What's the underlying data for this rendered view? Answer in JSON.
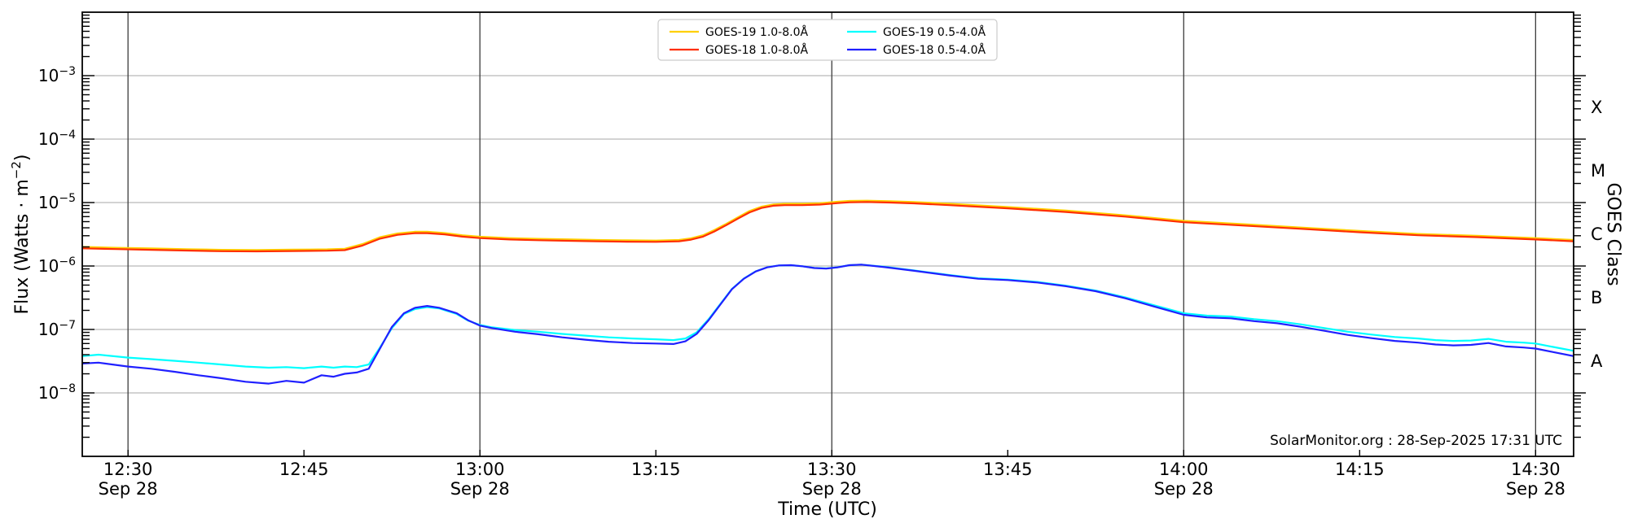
{
  "annotation": {
    "text": "SolarMonitor.org : 28-Sep-2025 17:31 UTC"
  },
  "axes": {
    "xlabel": "Time (UTC)",
    "ylabel_parts": [
      "Flux (Watts · m",
      "−2",
      ")"
    ],
    "right_axis": {
      "label": "GOES Class",
      "classes": [
        {
          "label": "X",
          "mid_exp": -3.5
        },
        {
          "label": "M",
          "mid_exp": -4.5
        },
        {
          "label": "C",
          "mid_exp": -5.5
        },
        {
          "label": "B",
          "mid_exp": -6.5
        },
        {
          "label": "A",
          "mid_exp": -7.5
        }
      ]
    }
  },
  "legend": {
    "entries": [
      {
        "label": "GOES-19 1.0-8.0Å",
        "color": "#ffd000"
      },
      {
        "label": "GOES-18 1.0-8.0Å",
        "color": "#ff2e00"
      },
      {
        "label": "GOES-19 0.5-4.0Å",
        "color": "#00ffff"
      },
      {
        "label": "GOES-18 0.5-4.0Å",
        "color": "#2020ff"
      }
    ]
  },
  "colors": {
    "h_grid": "#b9b9b9",
    "v_grid": "#3c3c3c",
    "spine": "#000000",
    "legend_border": "#cccccc"
  },
  "chart_data": {
    "type": "line",
    "title": "",
    "xlabel": "Time (UTC)",
    "ylabel": "Flux (Watts · m−2)",
    "x_unit": "decimal_hours_utc",
    "date": "Sep 28",
    "x_range": [
      12.435,
      14.554
    ],
    "y_range_exp": [
      -9,
      -2
    ],
    "y_labeled_decades_exp": [
      -3,
      -4,
      -5,
      -6,
      -7,
      -8
    ],
    "grid": {
      "horizontal": "decades",
      "vertical": "half_hours"
    },
    "legend_position": "upper center",
    "x_ticks": [
      {
        "t": 12.5,
        "label": "12:30",
        "date": "Sep 28"
      },
      {
        "t": 12.75,
        "label": "12:45"
      },
      {
        "t": 13.0,
        "label": "13:00",
        "date": "Sep 28"
      },
      {
        "t": 13.25,
        "label": "13:15"
      },
      {
        "t": 13.5,
        "label": "13:30",
        "date": "Sep 28"
      },
      {
        "t": 13.75,
        "label": "13:45"
      },
      {
        "t": 14.0,
        "label": "14:00",
        "date": "Sep 28"
      },
      {
        "t": 14.25,
        "label": "14:15"
      },
      {
        "t": 14.5,
        "label": "14:30",
        "date": "Sep 28"
      }
    ],
    "series": [
      {
        "name": "GOES-19 1.0-8.0Å",
        "color": "#ffd000",
        "points": [
          [
            12.435,
            2e-06
          ],
          [
            12.483,
            1.94e-06
          ],
          [
            12.533,
            1.89e-06
          ],
          [
            12.583,
            1.84e-06
          ],
          [
            12.633,
            1.8e-06
          ],
          [
            12.683,
            1.79e-06
          ],
          [
            12.733,
            1.81e-06
          ],
          [
            12.783,
            1.83e-06
          ],
          [
            12.808,
            1.87e-06
          ],
          [
            12.833,
            2.21e-06
          ],
          [
            12.858,
            2.84e-06
          ],
          [
            12.883,
            3.26e-06
          ],
          [
            12.908,
            3.47e-06
          ],
          [
            12.925,
            3.47e-06
          ],
          [
            12.95,
            3.31e-06
          ],
          [
            12.975,
            3.05e-06
          ],
          [
            13.0,
            2.89e-06
          ],
          [
            13.042,
            2.75e-06
          ],
          [
            13.083,
            2.68e-06
          ],
          [
            13.125,
            2.63e-06
          ],
          [
            13.167,
            2.57e-06
          ],
          [
            13.208,
            2.54e-06
          ],
          [
            13.25,
            2.52e-06
          ],
          [
            13.283,
            2.57e-06
          ],
          [
            13.3,
            2.73e-06
          ],
          [
            13.317,
            3.05e-06
          ],
          [
            13.333,
            3.68e-06
          ],
          [
            13.35,
            4.62e-06
          ],
          [
            13.367,
            5.88e-06
          ],
          [
            13.383,
            7.35e-06
          ],
          [
            13.4,
            8.61e-06
          ],
          [
            13.417,
            9.35e-06
          ],
          [
            13.433,
            9.56e-06
          ],
          [
            13.458,
            9.56e-06
          ],
          [
            13.483,
            9.77e-06
          ],
          [
            13.508,
            1.03e-05
          ],
          [
            13.525,
            1.06e-05
          ],
          [
            13.55,
            1.07e-05
          ],
          [
            13.583,
            1.05e-05
          ],
          [
            13.617,
            1.02e-05
          ],
          [
            13.667,
            9.56e-06
          ],
          [
            13.75,
            8.51e-06
          ],
          [
            13.833,
            7.46e-06
          ],
          [
            13.917,
            6.3e-06
          ],
          [
            14.0,
            5.15e-06
          ],
          [
            14.083,
            4.57e-06
          ],
          [
            14.167,
            4.04e-06
          ],
          [
            14.25,
            3.57e-06
          ],
          [
            14.333,
            3.2e-06
          ],
          [
            14.417,
            2.99e-06
          ],
          [
            14.5,
            2.75e-06
          ],
          [
            14.554,
            2.57e-06
          ]
        ]
      },
      {
        "name": "GOES-18 1.0-8.0Å",
        "color": "#ff2e00",
        "points": [
          [
            12.435,
            1.9e-06
          ],
          [
            12.483,
            1.85e-06
          ],
          [
            12.533,
            1.8e-06
          ],
          [
            12.583,
            1.75e-06
          ],
          [
            12.633,
            1.71e-06
          ],
          [
            12.683,
            1.7e-06
          ],
          [
            12.733,
            1.72e-06
          ],
          [
            12.783,
            1.74e-06
          ],
          [
            12.808,
            1.78e-06
          ],
          [
            12.833,
            2.1e-06
          ],
          [
            12.858,
            2.7e-06
          ],
          [
            12.883,
            3.1e-06
          ],
          [
            12.908,
            3.3e-06
          ],
          [
            12.925,
            3.3e-06
          ],
          [
            12.95,
            3.15e-06
          ],
          [
            12.975,
            2.9e-06
          ],
          [
            13.0,
            2.75e-06
          ],
          [
            13.042,
            2.62e-06
          ],
          [
            13.083,
            2.55e-06
          ],
          [
            13.125,
            2.5e-06
          ],
          [
            13.167,
            2.45e-06
          ],
          [
            13.208,
            2.42e-06
          ],
          [
            13.25,
            2.4e-06
          ],
          [
            13.283,
            2.45e-06
          ],
          [
            13.3,
            2.6e-06
          ],
          [
            13.317,
            2.9e-06
          ],
          [
            13.333,
            3.5e-06
          ],
          [
            13.35,
            4.4e-06
          ],
          [
            13.367,
            5.6e-06
          ],
          [
            13.383,
            7e-06
          ],
          [
            13.4,
            8.2e-06
          ],
          [
            13.417,
            8.9e-06
          ],
          [
            13.433,
            9.1e-06
          ],
          [
            13.458,
            9.1e-06
          ],
          [
            13.483,
            9.3e-06
          ],
          [
            13.508,
            9.8e-06
          ],
          [
            13.525,
            1.01e-05
          ],
          [
            13.55,
            1.02e-05
          ],
          [
            13.583,
            1e-05
          ],
          [
            13.617,
            9.7e-06
          ],
          [
            13.667,
            9.1e-06
          ],
          [
            13.75,
            8.1e-06
          ],
          [
            13.833,
            7.1e-06
          ],
          [
            13.917,
            6e-06
          ],
          [
            14.0,
            4.9e-06
          ],
          [
            14.083,
            4.35e-06
          ],
          [
            14.167,
            3.85e-06
          ],
          [
            14.25,
            3.4e-06
          ],
          [
            14.333,
            3.05e-06
          ],
          [
            14.417,
            2.85e-06
          ],
          [
            14.5,
            2.62e-06
          ],
          [
            14.554,
            2.45e-06
          ]
        ]
      },
      {
        "name": "GOES-19 0.5-4.0Å",
        "color": "#00ffff",
        "points": [
          [
            12.435,
            3.8e-08
          ],
          [
            12.458,
            4e-08
          ],
          [
            12.5,
            3.6e-08
          ],
          [
            12.533,
            3.4e-08
          ],
          [
            12.567,
            3.2e-08
          ],
          [
            12.6,
            3e-08
          ],
          [
            12.633,
            2.8e-08
          ],
          [
            12.667,
            2.6e-08
          ],
          [
            12.7,
            2.5e-08
          ],
          [
            12.725,
            2.55e-08
          ],
          [
            12.75,
            2.45e-08
          ],
          [
            12.775,
            2.6e-08
          ],
          [
            12.792,
            2.5e-08
          ],
          [
            12.808,
            2.6e-08
          ],
          [
            12.825,
            2.55e-08
          ],
          [
            12.842,
            2.8e-08
          ],
          [
            12.858,
            5.2e-08
          ],
          [
            12.875,
            1.05e-07
          ],
          [
            12.892,
            1.75e-07
          ],
          [
            12.908,
            2.1e-07
          ],
          [
            12.925,
            2.25e-07
          ],
          [
            12.942,
            2.15e-07
          ],
          [
            12.967,
            1.75e-07
          ],
          [
            12.983,
            1.38e-07
          ],
          [
            13.0,
            1.18e-07
          ],
          [
            13.017,
            1.08e-07
          ],
          [
            13.05,
            9.8e-08
          ],
          [
            13.083,
            9.2e-08
          ],
          [
            13.117,
            8.5e-08
          ],
          [
            13.15,
            8e-08
          ],
          [
            13.183,
            7.5e-08
          ],
          [
            13.217,
            7.2e-08
          ],
          [
            13.25,
            7e-08
          ],
          [
            13.275,
            6.8e-08
          ],
          [
            13.292,
            7.2e-08
          ],
          [
            13.308,
            9e-08
          ],
          [
            13.325,
            1.45e-07
          ],
          [
            13.342,
            2.55e-07
          ],
          [
            13.358,
            4.35e-07
          ],
          [
            13.375,
            6.35e-07
          ],
          [
            13.392,
            8.25e-07
          ],
          [
            13.408,
            9.55e-07
          ],
          [
            13.425,
            1.02e-06
          ],
          [
            13.442,
            1.03e-06
          ],
          [
            13.458,
            9.9e-07
          ],
          [
            13.475,
            9.35e-07
          ],
          [
            13.492,
            9.15e-07
          ],
          [
            13.508,
            9.55e-07
          ],
          [
            13.525,
            1.03e-06
          ],
          [
            13.542,
            1.05e-06
          ],
          [
            13.575,
            9.7e-07
          ],
          [
            13.617,
            8.5e-07
          ],
          [
            13.667,
            7.2e-07
          ],
          [
            13.708,
            6.4e-07
          ],
          [
            13.75,
            6.1e-07
          ],
          [
            13.792,
            5.6e-07
          ],
          [
            13.833,
            4.9e-07
          ],
          [
            13.875,
            4.1e-07
          ],
          [
            13.917,
            3.2e-07
          ],
          [
            13.958,
            2.4e-07
          ],
          [
            14.0,
            1.8e-07
          ],
          [
            14.033,
            1.65e-07
          ],
          [
            14.067,
            1.6e-07
          ],
          [
            14.1,
            1.45e-07
          ],
          [
            14.133,
            1.35e-07
          ],
          [
            14.167,
            1.2e-07
          ],
          [
            14.2,
            1.05e-07
          ],
          [
            14.233,
            9.2e-08
          ],
          [
            14.267,
            8.3e-08
          ],
          [
            14.3,
            7.6e-08
          ],
          [
            14.333,
            7.2e-08
          ],
          [
            14.358,
            6.8e-08
          ],
          [
            14.383,
            6.6e-08
          ],
          [
            14.408,
            6.7e-08
          ],
          [
            14.433,
            7.1e-08
          ],
          [
            14.458,
            6.4e-08
          ],
          [
            14.483,
            6.2e-08
          ],
          [
            14.5,
            6e-08
          ],
          [
            14.525,
            5.3e-08
          ],
          [
            14.554,
            4.6e-08
          ]
        ]
      },
      {
        "name": "GOES-18 0.5-4.0Å",
        "color": "#2020ff",
        "points": [
          [
            12.435,
            2.9e-08
          ],
          [
            12.458,
            3e-08
          ],
          [
            12.5,
            2.6e-08
          ],
          [
            12.533,
            2.4e-08
          ],
          [
            12.567,
            2.15e-08
          ],
          [
            12.6,
            1.9e-08
          ],
          [
            12.633,
            1.7e-08
          ],
          [
            12.667,
            1.5e-08
          ],
          [
            12.7,
            1.4e-08
          ],
          [
            12.725,
            1.55e-08
          ],
          [
            12.75,
            1.45e-08
          ],
          [
            12.775,
            1.9e-08
          ],
          [
            12.792,
            1.8e-08
          ],
          [
            12.808,
            2e-08
          ],
          [
            12.825,
            2.1e-08
          ],
          [
            12.842,
            2.4e-08
          ],
          [
            12.858,
            5e-08
          ],
          [
            12.875,
            1.1e-07
          ],
          [
            12.892,
            1.8e-07
          ],
          [
            12.908,
            2.2e-07
          ],
          [
            12.925,
            2.35e-07
          ],
          [
            12.942,
            2.2e-07
          ],
          [
            12.967,
            1.8e-07
          ],
          [
            12.983,
            1.4e-07
          ],
          [
            13.0,
            1.15e-07
          ],
          [
            13.017,
            1.05e-07
          ],
          [
            13.05,
            9.2e-08
          ],
          [
            13.083,
            8.4e-08
          ],
          [
            13.117,
            7.5e-08
          ],
          [
            13.15,
            6.9e-08
          ],
          [
            13.183,
            6.4e-08
          ],
          [
            13.217,
            6.1e-08
          ],
          [
            13.25,
            6e-08
          ],
          [
            13.275,
            5.9e-08
          ],
          [
            13.292,
            6.5e-08
          ],
          [
            13.308,
            8.5e-08
          ],
          [
            13.325,
            1.4e-07
          ],
          [
            13.342,
            2.5e-07
          ],
          [
            13.358,
            4.3e-07
          ],
          [
            13.375,
            6.3e-07
          ],
          [
            13.392,
            8.2e-07
          ],
          [
            13.408,
            9.5e-07
          ],
          [
            13.425,
            1.02e-06
          ],
          [
            13.442,
            1.03e-06
          ],
          [
            13.458,
            9.9e-07
          ],
          [
            13.475,
            9.3e-07
          ],
          [
            13.492,
            9.1e-07
          ],
          [
            13.508,
            9.5e-07
          ],
          [
            13.525,
            1.03e-06
          ],
          [
            13.542,
            1.05e-06
          ],
          [
            13.575,
            9.6e-07
          ],
          [
            13.617,
            8.4e-07
          ],
          [
            13.667,
            7.1e-07
          ],
          [
            13.708,
            6.3e-07
          ],
          [
            13.75,
            6e-07
          ],
          [
            13.792,
            5.5e-07
          ],
          [
            13.833,
            4.8e-07
          ],
          [
            13.875,
            4e-07
          ],
          [
            13.917,
            3.1e-07
          ],
          [
            13.958,
            2.3e-07
          ],
          [
            14.0,
            1.7e-07
          ],
          [
            14.033,
            1.55e-07
          ],
          [
            14.067,
            1.5e-07
          ],
          [
            14.1,
            1.35e-07
          ],
          [
            14.133,
            1.25e-07
          ],
          [
            14.167,
            1.1e-07
          ],
          [
            14.2,
            9.5e-08
          ],
          [
            14.233,
            8.2e-08
          ],
          [
            14.267,
            7.3e-08
          ],
          [
            14.3,
            6.6e-08
          ],
          [
            14.333,
            6.2e-08
          ],
          [
            14.358,
            5.8e-08
          ],
          [
            14.383,
            5.6e-08
          ],
          [
            14.408,
            5.7e-08
          ],
          [
            14.433,
            6.1e-08
          ],
          [
            14.458,
            5.4e-08
          ],
          [
            14.483,
            5.2e-08
          ],
          [
            14.5,
            5e-08
          ],
          [
            14.525,
            4.4e-08
          ],
          [
            14.554,
            3.8e-08
          ]
        ]
      }
    ]
  }
}
